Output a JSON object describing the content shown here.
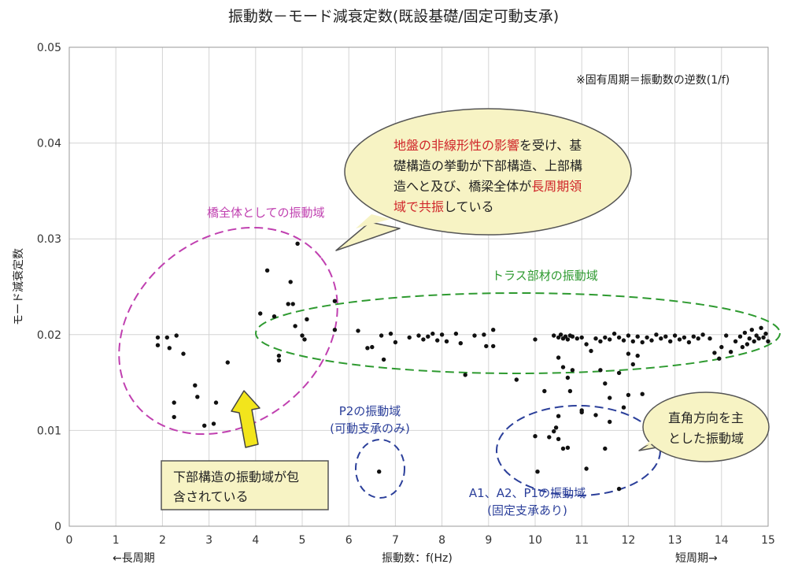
{
  "chart_data": {
    "type": "scatter",
    "title": "振動数－モード減衰定数(既設基礎/固定可動支承)",
    "xlabel": "振動数：f(Hz)",
    "ylabel": "モード減衰定数",
    "xlim": [
      0,
      15
    ],
    "ylim": [
      0,
      0.05
    ],
    "x_ticks": [
      "0",
      "1",
      "2",
      "3",
      "4",
      "5",
      "6",
      "7",
      "8",
      "9",
      "10",
      "11",
      "12",
      "13",
      "14",
      "15"
    ],
    "y_ticks": [
      "0",
      "0.01",
      "0.02",
      "0.03",
      "0.04",
      "0.05"
    ],
    "x_left_note": "←長周期",
    "x_right_note": "短周期→",
    "grid": true,
    "note": "※固有周期＝振動数の逆数(1/f)",
    "points": [
      [
        1.9,
        0.0197
      ],
      [
        1.9,
        0.0189
      ],
      [
        2.1,
        0.0197
      ],
      [
        2.15,
        0.0186
      ],
      [
        2.3,
        0.0199
      ],
      [
        2.45,
        0.018
      ],
      [
        2.25,
        0.0129
      ],
      [
        2.25,
        0.0114
      ],
      [
        2.7,
        0.0147
      ],
      [
        2.75,
        0.0135
      ],
      [
        2.9,
        0.0105
      ],
      [
        3.1,
        0.0107
      ],
      [
        3.15,
        0.0129
      ],
      [
        3.4,
        0.0171
      ],
      [
        4.1,
        0.0222
      ],
      [
        4.25,
        0.0267
      ],
      [
        4.4,
        0.0219
      ],
      [
        4.5,
        0.0173
      ],
      [
        4.5,
        0.0178
      ],
      [
        4.7,
        0.0232
      ],
      [
        4.75,
        0.0255
      ],
      [
        4.8,
        0.0232
      ],
      [
        4.85,
        0.0209
      ],
      [
        4.9,
        0.0295
      ],
      [
        5.0,
        0.0199
      ],
      [
        5.05,
        0.0195
      ],
      [
        5.1,
        0.0216
      ],
      [
        5.7,
        0.0235
      ],
      [
        5.7,
        0.0205
      ],
      [
        6.2,
        0.0204
      ],
      [
        6.4,
        0.0186
      ],
      [
        6.5,
        0.0187
      ],
      [
        6.7,
        0.0199
      ],
      [
        6.75,
        0.0174
      ],
      [
        6.9,
        0.0201
      ],
      [
        7.0,
        0.0192
      ],
      [
        7.3,
        0.0197
      ],
      [
        7.5,
        0.0199
      ],
      [
        7.6,
        0.0195
      ],
      [
        7.7,
        0.0198
      ],
      [
        7.8,
        0.0201
      ],
      [
        7.9,
        0.0194
      ],
      [
        8.0,
        0.02
      ],
      [
        8.1,
        0.0193
      ],
      [
        8.3,
        0.0201
      ],
      [
        8.4,
        0.0191
      ],
      [
        8.7,
        0.0199
      ],
      [
        8.9,
        0.02
      ],
      [
        8.95,
        0.0188
      ],
      [
        9.1,
        0.0188
      ],
      [
        9.1,
        0.0205
      ],
      [
        8.5,
        0.0158
      ],
      [
        9.6,
        0.0153
      ],
      [
        10.0,
        0.0195
      ],
      [
        10.4,
        0.0199
      ],
      [
        10.5,
        0.0197
      ],
      [
        10.55,
        0.02
      ],
      [
        10.6,
        0.0196
      ],
      [
        10.65,
        0.0198
      ],
      [
        10.7,
        0.0195
      ],
      [
        10.75,
        0.0199
      ],
      [
        10.8,
        0.0198
      ],
      [
        10.9,
        0.0196
      ],
      [
        11.0,
        0.0197
      ],
      [
        11.1,
        0.019
      ],
      [
        11.3,
        0.0196
      ],
      [
        11.4,
        0.0193
      ],
      [
        11.5,
        0.0197
      ],
      [
        11.6,
        0.0195
      ],
      [
        11.7,
        0.0201
      ],
      [
        11.8,
        0.0197
      ],
      [
        11.9,
        0.0194
      ],
      [
        12.0,
        0.0199
      ],
      [
        12.1,
        0.0193
      ],
      [
        12.2,
        0.0198
      ],
      [
        12.3,
        0.0192
      ],
      [
        12.4,
        0.0197
      ],
      [
        12.5,
        0.0194
      ],
      [
        12.6,
        0.02
      ],
      [
        12.7,
        0.0196
      ],
      [
        12.8,
        0.0198
      ],
      [
        12.9,
        0.0193
      ],
      [
        13.0,
        0.0199
      ],
      [
        13.1,
        0.0195
      ],
      [
        13.2,
        0.0197
      ],
      [
        13.3,
        0.0192
      ],
      [
        13.4,
        0.0198
      ],
      [
        13.5,
        0.0196
      ],
      [
        13.6,
        0.02
      ],
      [
        13.75,
        0.0196
      ],
      [
        13.85,
        0.0181
      ],
      [
        13.95,
        0.0175
      ],
      [
        14.0,
        0.0187
      ],
      [
        14.1,
        0.0199
      ],
      [
        14.2,
        0.0182
      ],
      [
        14.3,
        0.0193
      ],
      [
        14.4,
        0.0198
      ],
      [
        14.5,
        0.0202
      ],
      [
        14.55,
        0.019
      ],
      [
        14.6,
        0.0196
      ],
      [
        14.65,
        0.0205
      ],
      [
        14.7,
        0.0193
      ],
      [
        14.75,
        0.0199
      ],
      [
        14.8,
        0.0196
      ],
      [
        14.85,
        0.0207
      ],
      [
        14.9,
        0.0197
      ],
      [
        14.95,
        0.0201
      ],
      [
        15.0,
        0.0193
      ],
      [
        14.45,
        0.0187
      ],
      [
        10.5,
        0.0176
      ],
      [
        10.6,
        0.0166
      ],
      [
        10.7,
        0.0155
      ],
      [
        10.75,
        0.0141
      ],
      [
        10.8,
        0.0163
      ],
      [
        11.2,
        0.0183
      ],
      [
        11.4,
        0.0163
      ],
      [
        11.5,
        0.0149
      ],
      [
        11.8,
        0.016
      ],
      [
        12.0,
        0.018
      ],
      [
        12.1,
        0.0169
      ],
      [
        12.2,
        0.0178
      ],
      [
        11.6,
        0.0134
      ],
      [
        10.2,
        0.0141
      ],
      [
        10.5,
        0.0115
      ],
      [
        11.0,
        0.0121
      ],
      [
        11.3,
        0.0116
      ],
      [
        11.6,
        0.0109
      ],
      [
        11.9,
        0.0124
      ],
      [
        12.0,
        0.0137
      ],
      [
        12.3,
        0.0138
      ],
      [
        6.65,
        0.0057
      ],
      [
        10.0,
        0.0094
      ],
      [
        10.05,
        0.0057
      ],
      [
        10.3,
        0.0093
      ],
      [
        10.4,
        0.0099
      ],
      [
        10.45,
        0.0103
      ],
      [
        10.5,
        0.0091
      ],
      [
        10.6,
        0.0081
      ],
      [
        10.7,
        0.0082
      ],
      [
        11.0,
        0.0119
      ],
      [
        11.1,
        0.006
      ],
      [
        11.5,
        0.0081
      ],
      [
        11.8,
        0.0039
      ]
    ],
    "regions": [
      {
        "label": "橋全体としての振動域",
        "color": "#c040b0"
      },
      {
        "label": "トラス部材の振動域",
        "color": "#2e9a30"
      },
      {
        "label": "P2の振動域",
        "sublabel": "(可動支承のみ)",
        "color": "#2b3f9a"
      },
      {
        "label": "A1、A2、P1の振動域",
        "sublabel": "(固定支承あり)",
        "color": "#2b3f9a"
      }
    ],
    "callouts": {
      "main": [
        [
          {
            "t": "地盤の非線形性の影響",
            "c": "red"
          },
          {
            "t": "を受け、基",
            "c": "black"
          }
        ],
        [
          {
            "t": "礎構造の挙動が下部構造、上部構",
            "c": "black"
          }
        ],
        [
          {
            "t": "造へと及び、橋梁全体が",
            "c": "black"
          },
          {
            "t": "長周期領",
            "c": "red"
          }
        ],
        [
          {
            "t": "域で共振",
            "c": "red"
          },
          {
            "t": "している",
            "c": "black"
          }
        ]
      ],
      "right": [
        "直角方向を主",
        "とした振動域"
      ],
      "box": [
        "下部構造の振動域が包",
        "含されている"
      ]
    },
    "colors": {
      "point": "#111111",
      "grid": "#d4d4d4",
      "bubble_fill": "#f7f3c4",
      "arrow_fill": "#f2e51c",
      "red_text": "#d0262a"
    }
  }
}
